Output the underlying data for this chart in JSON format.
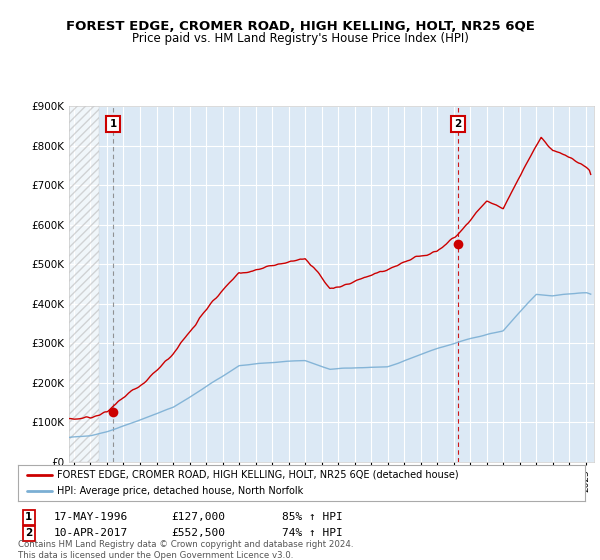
{
  "title": "FOREST EDGE, CROMER ROAD, HIGH KELLING, HOLT, NR25 6QE",
  "subtitle": "Price paid vs. HM Land Registry's House Price Index (HPI)",
  "title_fontsize": 9.5,
  "subtitle_fontsize": 8.5,
  "ylim": [
    0,
    900000
  ],
  "yticks": [
    0,
    100000,
    200000,
    300000,
    400000,
    500000,
    600000,
    700000,
    800000,
    900000
  ],
  "ytick_labels": [
    "£0",
    "£100K",
    "£200K",
    "£300K",
    "£400K",
    "£500K",
    "£600K",
    "£700K",
    "£800K",
    "£900K"
  ],
  "xlim_start": 1993.7,
  "xlim_end": 2025.5,
  "xticks": [
    1994,
    1995,
    1996,
    1997,
    1998,
    1999,
    2000,
    2001,
    2002,
    2003,
    2004,
    2005,
    2006,
    2007,
    2008,
    2009,
    2010,
    2011,
    2012,
    2013,
    2014,
    2015,
    2016,
    2017,
    2018,
    2019,
    2020,
    2021,
    2022,
    2023,
    2024,
    2025
  ],
  "property_color": "#cc0000",
  "hpi_color": "#7bafd4",
  "sale1_date": 1996.37,
  "sale1_price": 127000,
  "sale1_label": "1",
  "sale2_date": 2017.27,
  "sale2_price": 552500,
  "sale2_label": "2",
  "legend_property": "FOREST EDGE, CROMER ROAD, HIGH KELLING, HOLT, NR25 6QE (detached house)",
  "legend_hpi": "HPI: Average price, detached house, North Norfolk",
  "info1_label": "1",
  "info1_date": "17-MAY-1996",
  "info1_price": "£127,000",
  "info1_hpi": "85% ↑ HPI",
  "info2_label": "2",
  "info2_date": "10-APR-2017",
  "info2_price": "£552,500",
  "info2_hpi": "74% ↑ HPI",
  "footer": "Contains HM Land Registry data © Crown copyright and database right 2024.\nThis data is licensed under the Open Government Licence v3.0.",
  "background_color": "#dce9f5",
  "hatched_region_end": 1995.5
}
